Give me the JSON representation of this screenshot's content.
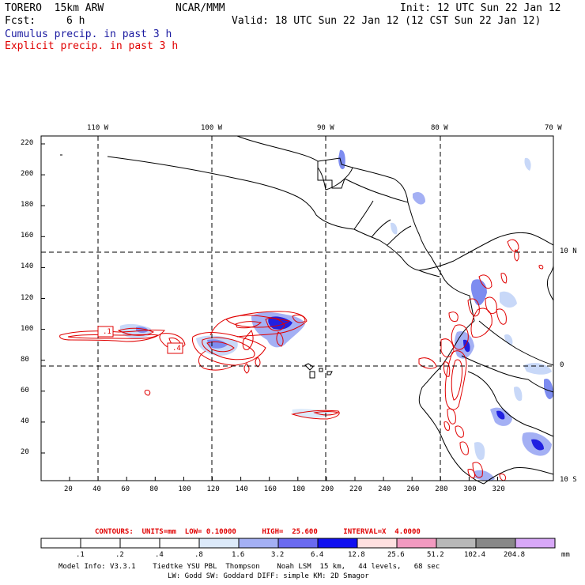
{
  "header": {
    "model": "TORERO  15km ARW",
    "org": "NCAR/MMM",
    "init": "Init: 12 UTC Sun 22 Jan 12",
    "fcst_label": "Fcst:",
    "fcst_value": "6 h",
    "valid": "Valid: 18 UTC Sun 22 Jan 12 (12 CST Sun 22 Jan 12)",
    "legend_cumulus": "Cumulus precip. in past 3 h",
    "legend_explicit": "Explicit precip. in past 3 h"
  },
  "map": {
    "lon_labels": [
      "110 W",
      "100 W",
      "90 W",
      "80 W",
      "70 W"
    ],
    "lat_labels": [
      "10 N",
      "0",
      "10 S"
    ],
    "y_ticks": [
      "220",
      "200",
      "180",
      "160",
      "140",
      "120",
      "100",
      "80",
      "60",
      "40",
      "20"
    ],
    "x_ticks": [
      "20",
      "40",
      "60",
      "80",
      "100",
      "120",
      "140",
      "160",
      "180",
      "200",
      "220",
      "240",
      "260",
      "280",
      "300",
      "320"
    ],
    "contour_labels": [
      ".1",
      ".4"
    ],
    "colors": {
      "coast": "#000000",
      "cumulus_light": "#c8d8f8",
      "cumulus_mid": "#7d8cf0",
      "cumulus_dark": "#2020e0",
      "explicit": "#e00000"
    }
  },
  "contours_line": "CONTOURS:  UNITS=mm  LOW= 0.10000      HIGH=  25.600      INTERVAL=X  4.0000",
  "colorbar": {
    "labels": [
      ".1",
      ".2",
      ".4",
      ".8",
      "1.6",
      "3.2",
      "6.4",
      "12.8",
      "25.6",
      "51.2",
      "102.4",
      "204.8"
    ],
    "units": "mm",
    "colors": [
      "#ffffff",
      "#ffffff",
      "#ffffff",
      "#ffffff",
      "#dceafa",
      "#a4b0f4",
      "#6a6af0",
      "#1010f0",
      "#ffe0e0",
      "#f29ac0",
      "#b8b8b8",
      "#888888",
      "#d8a8f8"
    ]
  },
  "footer": {
    "line1": "Model Info: V3.3.1    Tiedtke YSU PBL  Thompson    Noah LSM  15 km,   44 levels,   68 sec",
    "line2": "LW: Godd SW: Goddard DIFF: simple KM: 2D Smagor"
  }
}
